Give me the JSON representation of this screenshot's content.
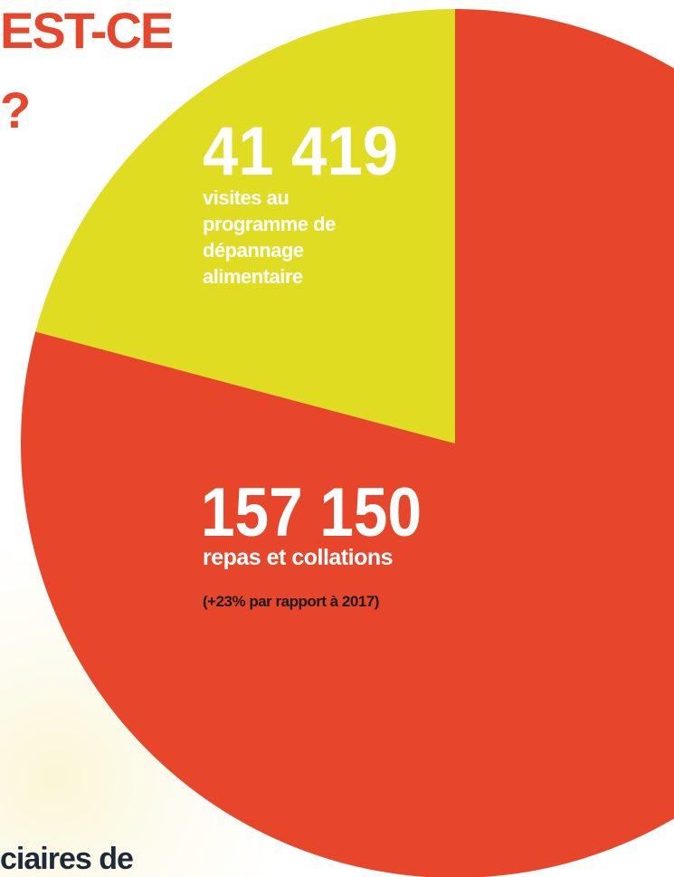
{
  "chart_data": {
    "type": "pie",
    "title_lines": [
      "EST-CE",
      "?"
    ],
    "categories": [
      "visites au programme de dépannage alimentaire",
      "repas et collations"
    ],
    "values": [
      41419,
      157150
    ],
    "value_labels": [
      "41 419",
      "157 150"
    ],
    "colors": [
      "#dfdc22",
      "#e8462a"
    ],
    "annotation": "(+23% par rapport à 2017)",
    "footer_text": "ciaires de"
  }
}
